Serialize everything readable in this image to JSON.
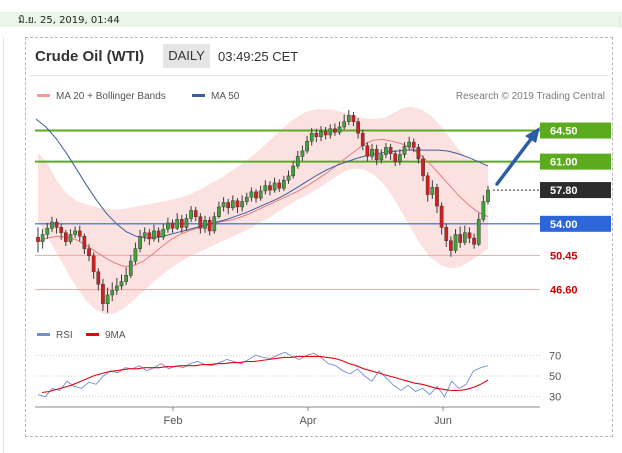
{
  "datebar": {
    "text": "มิ.ย. 25, 2019, 01:44"
  },
  "header": {
    "title": "Crude Oil (WTI)",
    "timeframe": "DAILY",
    "time": "03:49:25 CET"
  },
  "legend": {
    "ma_bands_label": "MA 20 + Bollinger Bands",
    "ma50_label": "MA 50",
    "credit": "Research © 2019 Trading Central",
    "colors": {
      "ma_bands": "#f29a9a",
      "ma50": "#3b5f9e"
    }
  },
  "rsi_legend": {
    "rsi_label": "RSI",
    "ma_label": "9MA",
    "colors": {
      "rsi": "#6f8fd6",
      "ma": "#e30613"
    }
  },
  "chart_data": [
    {
      "type": "line",
      "subtype": "candlestick",
      "ylim": [
        43.4,
        68.5
      ],
      "x_tick_labels": [
        "Feb",
        "Apr",
        "Jun"
      ],
      "levels": [
        {
          "label": "64.50",
          "value": 64.5,
          "style": "green-line-badge",
          "color": "#5cab1e"
        },
        {
          "label": "61.00",
          "value": 61.0,
          "style": "green-line-badge",
          "color": "#5cab1e"
        },
        {
          "label": "57.80",
          "value": 57.8,
          "style": "current-price-dark-badge",
          "color": "#2c2c2c"
        },
        {
          "label": "54.00",
          "value": 54.0,
          "style": "blue-line-badge",
          "color": "#2d66d8"
        },
        {
          "label": "50.45",
          "value": 50.45,
          "style": "red-line-text",
          "color": "#c80000"
        },
        {
          "label": "46.60",
          "value": 46.6,
          "style": "red-line-text",
          "color": "#c80000"
        }
      ],
      "candles": [
        [
          52.5,
          52.0,
          53.6,
          50.8
        ],
        [
          52.0,
          52.8,
          53.4,
          51.2
        ],
        [
          52.8,
          53.5,
          54.1,
          52.3
        ],
        [
          53.5,
          54.2,
          54.8,
          53.1
        ],
        [
          54.2,
          53.6,
          54.6,
          52.9
        ],
        [
          53.6,
          53.0,
          54.0,
          52.2
        ],
        [
          53.0,
          52.0,
          53.3,
          51.5
        ],
        [
          52.0,
          52.8,
          53.4,
          51.7
        ],
        [
          52.8,
          53.2,
          53.7,
          52.4
        ],
        [
          53.2,
          52.6,
          53.8,
          52.0
        ],
        [
          52.6,
          51.2,
          52.9,
          50.6
        ],
        [
          51.2,
          50.4,
          51.7,
          49.8
        ],
        [
          50.4,
          48.6,
          50.8,
          47.8
        ],
        [
          48.6,
          47.2,
          49.0,
          46.5
        ],
        [
          47.2,
          45.0,
          47.8,
          44.2
        ],
        [
          45.0,
          46.0,
          46.8,
          44.0
        ],
        [
          46.0,
          46.5,
          47.4,
          45.3
        ],
        [
          46.5,
          47.0,
          47.9,
          46.0
        ],
        [
          47.0,
          47.5,
          48.3,
          46.6
        ],
        [
          47.5,
          48.2,
          49.1,
          47.1
        ],
        [
          48.2,
          49.8,
          50.5,
          47.9
        ],
        [
          49.8,
          51.2,
          51.9,
          49.4
        ],
        [
          51.2,
          52.6,
          53.3,
          50.8
        ],
        [
          52.6,
          53.0,
          53.6,
          52.0
        ],
        [
          53.0,
          52.3,
          53.4,
          51.6
        ],
        [
          52.3,
          53.2,
          53.9,
          52.0
        ],
        [
          53.2,
          52.5,
          53.6,
          51.9
        ],
        [
          52.5,
          53.4,
          54.0,
          52.2
        ],
        [
          53.4,
          54.1,
          54.7,
          53.0
        ],
        [
          54.1,
          53.5,
          54.5,
          53.0
        ],
        [
          53.5,
          54.5,
          55.2,
          53.3
        ],
        [
          54.5,
          53.6,
          55.0,
          53.0
        ],
        [
          53.6,
          54.6,
          55.1,
          53.2
        ],
        [
          54.6,
          55.5,
          56.0,
          54.2
        ],
        [
          55.5,
          54.8,
          55.9,
          54.3
        ],
        [
          54.8,
          53.5,
          55.2,
          52.9
        ],
        [
          53.5,
          54.4,
          54.9,
          53.0
        ],
        [
          54.4,
          53.2,
          54.8,
          52.7
        ],
        [
          53.2,
          54.8,
          55.3,
          52.9
        ],
        [
          54.8,
          55.9,
          56.5,
          54.6
        ],
        [
          55.9,
          56.4,
          57.0,
          55.4
        ],
        [
          56.4,
          55.8,
          56.8,
          55.1
        ],
        [
          55.8,
          56.6,
          57.2,
          55.5
        ],
        [
          56.6,
          55.9,
          56.9,
          55.2
        ],
        [
          55.9,
          56.5,
          57.2,
          55.4
        ],
        [
          56.5,
          57.0,
          57.5,
          56.1
        ],
        [
          57.0,
          57.6,
          58.1,
          56.5
        ],
        [
          57.6,
          56.9,
          57.9,
          56.4
        ],
        [
          56.9,
          57.7,
          58.3,
          56.6
        ],
        [
          57.7,
          58.3,
          58.9,
          57.3
        ],
        [
          58.3,
          57.8,
          58.8,
          57.2
        ],
        [
          57.8,
          58.6,
          59.2,
          57.5
        ],
        [
          58.6,
          58.0,
          59.0,
          57.6
        ],
        [
          58.0,
          58.9,
          59.4,
          57.7
        ],
        [
          58.9,
          59.4,
          60.0,
          58.5
        ],
        [
          59.4,
          60.5,
          61.1,
          59.1
        ],
        [
          60.5,
          61.6,
          62.2,
          60.2
        ],
        [
          61.6,
          62.2,
          62.8,
          61.1
        ],
        [
          62.2,
          63.3,
          63.9,
          61.9
        ],
        [
          63.3,
          64.2,
          64.8,
          62.8
        ],
        [
          64.2,
          63.8,
          64.7,
          63.2
        ],
        [
          63.8,
          64.4,
          65.0,
          63.3
        ],
        [
          64.4,
          64.0,
          64.9,
          63.5
        ],
        [
          64.0,
          64.7,
          65.2,
          63.6
        ],
        [
          64.7,
          64.3,
          65.3,
          63.9
        ],
        [
          64.3,
          64.9,
          65.5,
          64.0
        ],
        [
          64.9,
          65.5,
          66.3,
          64.6
        ],
        [
          65.5,
          66.2,
          66.8,
          65.1
        ],
        [
          66.2,
          65.5,
          66.6,
          65.0
        ],
        [
          65.5,
          64.2,
          65.9,
          63.6
        ],
        [
          64.2,
          62.8,
          64.6,
          62.3
        ],
        [
          62.8,
          61.6,
          63.2,
          61.0
        ],
        [
          61.6,
          62.4,
          63.0,
          61.2
        ],
        [
          62.4,
          61.2,
          62.9,
          60.6
        ],
        [
          61.2,
          61.8,
          62.4,
          60.8
        ],
        [
          61.8,
          62.6,
          63.1,
          61.4
        ],
        [
          62.6,
          61.9,
          63.0,
          61.2
        ],
        [
          61.9,
          61.0,
          62.3,
          60.5
        ],
        [
          61.0,
          61.8,
          62.4,
          60.6
        ],
        [
          61.8,
          62.7,
          63.2,
          61.4
        ],
        [
          62.7,
          63.2,
          63.8,
          62.3
        ],
        [
          63.2,
          62.6,
          63.6,
          62.1
        ],
        [
          62.6,
          61.3,
          63.0,
          60.8
        ],
        [
          61.3,
          59.4,
          61.7,
          58.8
        ],
        [
          59.4,
          57.3,
          59.8,
          56.5
        ],
        [
          57.3,
          58.1,
          58.9,
          56.8
        ],
        [
          58.1,
          56.0,
          58.5,
          55.2
        ],
        [
          56.0,
          53.6,
          56.4,
          52.8
        ],
        [
          53.6,
          52.1,
          54.0,
          51.4
        ],
        [
          52.1,
          51.0,
          52.6,
          50.3
        ],
        [
          51.0,
          52.8,
          53.4,
          50.7
        ],
        [
          52.8,
          51.9,
          53.7,
          51.3
        ],
        [
          51.9,
          53.0,
          53.8,
          51.6
        ],
        [
          53.0,
          52.4,
          53.6,
          51.8
        ],
        [
          52.4,
          51.7,
          52.9,
          51.2
        ],
        [
          51.7,
          54.5,
          55.2,
          51.5
        ],
        [
          54.5,
          56.5,
          57.2,
          54.2
        ],
        [
          56.5,
          57.8,
          58.3,
          56.2
        ]
      ],
      "series": [
        {
          "name": "MA 20 + Bollinger Bands",
          "values": [
            52.0,
            52.4,
            52.6,
            52.5,
            52.2,
            51.6,
            50.9,
            50.2,
            49.6,
            49.2,
            49.3,
            49.8,
            50.6,
            51.5,
            52.3,
            52.9,
            53.3,
            53.6,
            53.9,
            54.2,
            54.4,
            54.7,
            55.1,
            55.6,
            56.1,
            56.6,
            57.1,
            57.6,
            58.2,
            58.9,
            59.6,
            60.4,
            61.3,
            62.1,
            62.9,
            63.4,
            63.5,
            63.3,
            63.0,
            62.5,
            61.7,
            60.7,
            59.5,
            58.3,
            57.1,
            56.1,
            55.3,
            54.8
          ]
        },
        {
          "name": "MA 50",
          "values": [
            65.8,
            64.9,
            63.6,
            62.0,
            60.2,
            58.4,
            56.7,
            55.2,
            54.0,
            53.1,
            52.6,
            52.4,
            52.5,
            52.7,
            53.0,
            53.3,
            53.6,
            53.9,
            54.2,
            54.5,
            54.9,
            55.3,
            55.8,
            56.3,
            56.8,
            57.4,
            58.1,
            58.8,
            59.5,
            60.1,
            60.6,
            61.0,
            61.4,
            61.7,
            61.9,
            62.1,
            62.2,
            62.3,
            62.3,
            62.3,
            62.3,
            62.2,
            61.9,
            61.5,
            61.0,
            60.5
          ]
        }
      ],
      "bollinger_upper": [
        62.0,
        60.8,
        58.8,
        57.4,
        56.6,
        56.2,
        55.9,
        55.7,
        55.6,
        55.7,
        55.9,
        56.1,
        56.3,
        56.5,
        56.7,
        57.0,
        57.4,
        57.9,
        58.5,
        59.1,
        59.8,
        60.5,
        61.3,
        62.2,
        63.2,
        64.2,
        65.2,
        66.0,
        66.6,
        66.9,
        66.9,
        66.8,
        66.5,
        66.2,
        65.9,
        65.8,
        65.9,
        66.4,
        67.0,
        67.2,
        66.9,
        66.2,
        65.1,
        63.7,
        62.3,
        61.3,
        60.8,
        60.6
      ],
      "bollinger_lower": [
        54.2,
        52.5,
        50.6,
        48.7,
        46.9,
        45.4,
        44.3,
        43.8,
        43.9,
        44.5,
        45.4,
        46.4,
        47.4,
        48.3,
        49.1,
        49.8,
        50.4,
        50.9,
        51.4,
        51.9,
        52.4,
        52.9,
        53.4,
        54.0,
        54.6,
        55.3,
        56.0,
        56.6,
        57.2,
        57.8,
        58.5,
        59.2,
        59.9,
        60.2,
        60.1,
        59.6,
        58.6,
        57.1,
        55.3,
        53.4,
        51.6,
        50.2,
        49.4,
        49.0,
        49.1,
        49.7,
        50.4,
        51.2
      ]
    },
    {
      "type": "line",
      "title": "RSI",
      "ylim": [
        20,
        80
      ],
      "y_tick_labels": [
        70,
        50,
        30
      ],
      "series": [
        {
          "name": "RSI",
          "values": [
            32,
            30,
            38,
            36,
            45,
            40,
            38,
            44,
            42,
            50,
            55,
            53,
            58,
            57,
            60,
            55,
            58,
            62,
            57,
            60,
            58,
            62,
            64,
            61,
            60,
            63,
            66,
            64,
            62,
            66,
            70,
            68,
            67,
            70,
            73,
            69,
            66,
            70,
            72,
            68,
            62,
            60,
            55,
            52,
            57,
            50,
            45,
            55,
            48,
            41,
            36,
            41,
            35,
            38,
            32,
            40,
            30,
            45,
            38,
            42,
            55,
            58,
            60
          ]
        },
        {
          "name": "9MA",
          "values": [
            34,
            35,
            37,
            39,
            41,
            44,
            47,
            50,
            52,
            54,
            55,
            56,
            57,
            57,
            58,
            58,
            58,
            59,
            59,
            60,
            60,
            60,
            61,
            61,
            62,
            62,
            63,
            63,
            64,
            64,
            65,
            66,
            67,
            68,
            68,
            69,
            69,
            69,
            69,
            68,
            67,
            65,
            62,
            60,
            57,
            55,
            53,
            51,
            49,
            47,
            45,
            43,
            42,
            40,
            38,
            37,
            36,
            36,
            37,
            39,
            42,
            46
          ]
        }
      ]
    }
  ]
}
